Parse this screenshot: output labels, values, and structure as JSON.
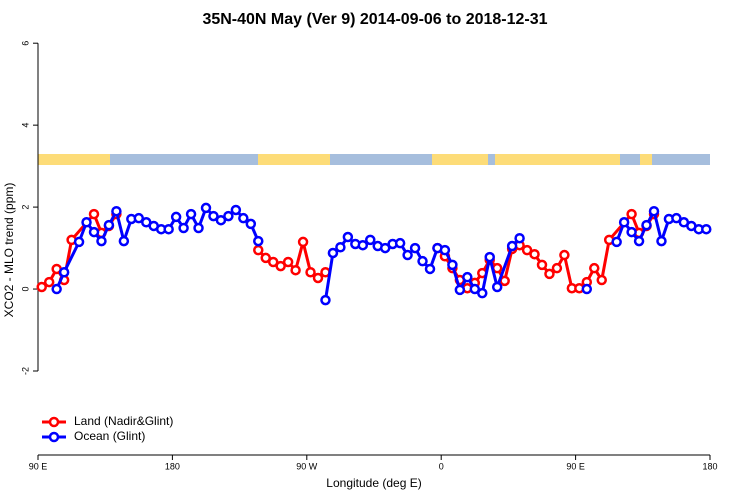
{
  "chart_data": {
    "type": "line",
    "title": "35N-40N May (Ver 9)   2014-09-06 to 2018-12-31",
    "x_label": "Longitude (deg E)",
    "y_label": "XCO2 - MLO trend (ppm)",
    "xlim": [
      90,
      540
    ],
    "ylim": [
      -4.05,
      6.2
    ],
    "xticks": [
      {
        "value": 90,
        "label": "90 E"
      },
      180,
      {
        "value": 270,
        "label": "90 W"
      },
      {
        "value": 360,
        "label": "0"
      },
      {
        "value": 450,
        "label": "90 E"
      },
      {
        "value": 540,
        "label": "180"
      }
    ],
    "yticks": [
      -2,
      0,
      2,
      4,
      6
    ],
    "legend": "bottom-left",
    "series": [
      {
        "name": "Land (Nadir&Glint)",
        "color": "#ff0000",
        "x": [
          92.5,
          97.5,
          102.5,
          107.5,
          112.5,
          127.5,
          132.5,
          137.5,
          142.5,
          190,
          237.5,
          242.5,
          247.5,
          252.5,
          257.5,
          262.5,
          267.5,
          272.5,
          277.5,
          282.5,
          320,
          357.5,
          362.5,
          367.5,
          372.5,
          377.5,
          382.5,
          387.5,
          392.5,
          397.5,
          402.5,
          407.5,
          412.5,
          417.5,
          422.5,
          427.5,
          432.5,
          437.5,
          442.5,
          447.5,
          452.5,
          457.5,
          462.5,
          467.5,
          472.5,
          487.5,
          492.5,
          497.5,
          502.5
        ],
        "values": [
          0.05,
          0.17,
          0.49,
          0.22,
          1.2,
          1.83,
          1.37,
          1.54,
          1.83,
          null,
          0.95,
          0.76,
          0.66,
          0.56,
          0.66,
          0.46,
          1.15,
          0.41,
          0.27,
          0.41,
          null,
          1.0,
          0.8,
          0.51,
          0.22,
          0.02,
          0.15,
          0.39,
          0.71,
          0.51,
          0.2,
          0.98,
          1.07,
          0.95,
          0.85,
          0.59,
          0.37,
          0.51,
          0.83,
          0.02,
          0.02,
          0.17,
          0.51,
          0.22,
          1.2,
          1.83,
          1.37,
          1.54,
          1.83
        ]
      },
      {
        "name": "Ocean (Glint)",
        "color": "#0000ff",
        "x": [
          102.5,
          107.5,
          117.5,
          122.5,
          127.5,
          132.5,
          137.5,
          142.5,
          147.5,
          152.5,
          157.5,
          162.5,
          167.5,
          172.5,
          177.5,
          182.5,
          187.5,
          192.5,
          197.5,
          202.5,
          207.5,
          212.5,
          217.5,
          222.5,
          227.5,
          232.5,
          237.5,
          260,
          282.5,
          287.5,
          292.5,
          297.5,
          302.5,
          307.5,
          312.5,
          317.5,
          322.5,
          327.5,
          332.5,
          337.5,
          342.5,
          347.5,
          352.5,
          357.5,
          362.5,
          367.5,
          372.5,
          377.5,
          382.5,
          387.5,
          392.5,
          397.5,
          407.5,
          412.5,
          435,
          457.5,
          470,
          477.5,
          482.5,
          487.5,
          492.5,
          497.5,
          502.5,
          507.5,
          512.5,
          517.5,
          522.5,
          527.5,
          532.5,
          537.5
        ],
        "values": [
          0,
          0.41,
          1.15,
          1.63,
          1.39,
          1.17,
          1.56,
          1.9,
          1.17,
          1.71,
          1.73,
          1.63,
          1.54,
          1.46,
          1.46,
          1.76,
          1.49,
          1.83,
          1.49,
          1.98,
          1.78,
          1.68,
          1.78,
          1.93,
          1.73,
          1.59,
          1.17,
          null,
          -0.27,
          0.88,
          1.02,
          1.27,
          1.1,
          1.07,
          1.2,
          1.05,
          1.0,
          1.1,
          1.12,
          0.83,
          1.0,
          0.68,
          0.49,
          1.0,
          0.95,
          0.59,
          -0.02,
          0.29,
          0,
          -0.1,
          0.78,
          0.05,
          1.05,
          1.24,
          null,
          0,
          null,
          1.15,
          1.63,
          1.39,
          1.17,
          1.56,
          1.9,
          1.17,
          1.71,
          1.73,
          1.63,
          1.54,
          1.46,
          1.46
        ]
      }
    ]
  }
}
